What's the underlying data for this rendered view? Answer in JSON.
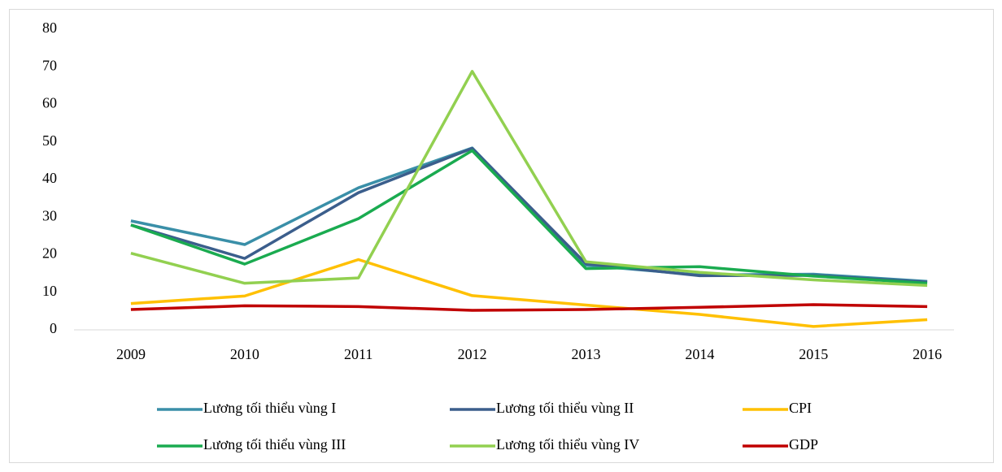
{
  "chart_data": {
    "type": "line",
    "categories": [
      "2009",
      "2010",
      "2011",
      "2012",
      "2013",
      "2014",
      "2015",
      "2016"
    ],
    "series": [
      {
        "name": "Lương tối thiểu vùng I",
        "color": "#3a8fa8",
        "values": [
          29.0,
          22.7,
          37.8,
          48.4,
          17.2,
          14.6,
          14.8,
          12.9
        ]
      },
      {
        "name": "Lương tối thiểu vùng II",
        "color": "#3b5e8c",
        "values": [
          27.9,
          19.0,
          36.5,
          48.3,
          17.6,
          14.4,
          14.5,
          12.7
        ]
      },
      {
        "name": "CPI",
        "color": "#ffc000",
        "values": [
          7.0,
          9.0,
          18.7,
          9.1,
          6.6,
          4.1,
          0.9,
          2.7
        ]
      },
      {
        "name": "Lương tối thiểu vùng III",
        "color": "#1aab50",
        "values": [
          27.9,
          17.5,
          29.6,
          47.7,
          16.3,
          16.8,
          14.3,
          12.4
        ]
      },
      {
        "name": "Lương tối thiểu vùng IV",
        "color": "#92d050",
        "values": [
          20.4,
          12.4,
          13.8,
          68.8,
          18.1,
          15.3,
          13.3,
          11.8
        ]
      },
      {
        "name": "GDP",
        "color": "#c00000",
        "values": [
          5.4,
          6.4,
          6.2,
          5.2,
          5.4,
          6.0,
          6.7,
          6.2
        ]
      }
    ],
    "ylim": [
      0,
      80
    ],
    "yticks": [
      0,
      10,
      20,
      30,
      40,
      50,
      60,
      70,
      80
    ],
    "grid": false,
    "legend": "bottom"
  }
}
